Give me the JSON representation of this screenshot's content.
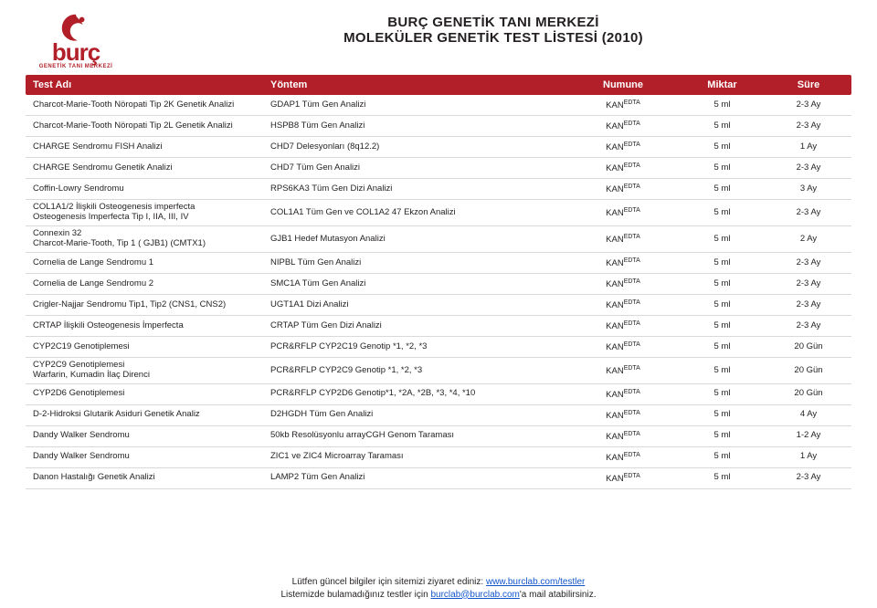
{
  "brand": {
    "word": "burç",
    "sub": "GENETİK TANI MERKEZİ",
    "swirl_color": "#b21f28"
  },
  "title": {
    "line1": "BURÇ GENETİK TANI MERKEZİ",
    "line2": "MOLEKÜLER GENETİK TEST LİSTESİ (2010)"
  },
  "columns": {
    "name": "Test Adı",
    "method": "Yöntem",
    "sample": "Numune",
    "amount": "Miktar",
    "time": "Süre"
  },
  "sample_label": {
    "prefix": "KAN",
    "sup": "EDTA"
  },
  "rows": [
    {
      "name": "Charcot-Marie-Tooth Nöropati Tip 2K Genetik Analizi",
      "method": "GDAP1 Tüm Gen Analizi",
      "amount": "5 ml",
      "time": "2-3 Ay"
    },
    {
      "name": "Charcot-Marie-Tooth Nöropati Tip 2L Genetik Analizi",
      "method": "HSPB8 Tüm Gen Analizi",
      "amount": "5 ml",
      "time": "2-3 Ay"
    },
    {
      "name": "CHARGE Sendromu FISH Analizi",
      "method": "CHD7 Delesyonları (8q12.2)",
      "amount": "5 ml",
      "time": "1 Ay"
    },
    {
      "name": "CHARGE Sendromu Genetik Analizi",
      "method": "CHD7 Tüm Gen Analizi",
      "amount": "5 ml",
      "time": "2-3 Ay"
    },
    {
      "name": "Coffin-Lowry Sendromu",
      "method": "RPS6KA3 Tüm Gen Dizi Analizi",
      "amount": "5 ml",
      "time": "3 Ay"
    },
    {
      "name": "COL1A1/2 İlişkili Osteogenesis imperfecta\nOsteogenesis Imperfecta Tip I, IIA, III, IV",
      "method": "COL1A1 Tüm Gen ve COL1A2 47 Ekzon Analizi",
      "amount": "5 ml",
      "time": "2-3 Ay"
    },
    {
      "name": "Connexin 32\nCharcot-Marie-Tooth, Tip 1 ( GJB1) (CMTX1)",
      "method": "GJB1 Hedef Mutasyon Analizi",
      "amount": "5 ml",
      "time": "2 Ay"
    },
    {
      "name": "Cornelia de Lange Sendromu 1",
      "method": "NIPBL Tüm Gen Analizi",
      "amount": "5 ml",
      "time": "2-3 Ay"
    },
    {
      "name": "Cornelia de Lange Sendromu 2",
      "method": "SMC1A Tüm Gen Analizi",
      "amount": "5 ml",
      "time": "2-3 Ay"
    },
    {
      "name": "Crigler-Najjar Sendromu Tip1, Tip2 (CNS1, CNS2)",
      "method": "UGT1A1 Dizi Analizi",
      "amount": "5 ml",
      "time": "2-3 Ay"
    },
    {
      "name": "CRTAP İlişkili Osteogenesis İmperfecta",
      "method": "CRTAP Tüm Gen Dizi Analizi",
      "amount": "5 ml",
      "time": "2-3 Ay"
    },
    {
      "name": "CYP2C19 Genotiplemesi",
      "method": "PCR&RFLP CYP2C19 Genotip *1, *2, *3",
      "amount": "5 ml",
      "time": "20 Gün"
    },
    {
      "name": "CYP2C9 Genotiplemesi\nWarfarin, Kumadin İlaç Direnci",
      "method": "PCR&RFLP CYP2C9 Genotip *1, *2, *3",
      "amount": "5 ml",
      "time": "20 Gün"
    },
    {
      "name": "CYP2D6 Genotiplemesi",
      "method": "PCR&RFLP CYP2D6 Genotip*1, *2A, *2B, *3, *4, *10",
      "amount": "5 ml",
      "time": "20 Gün"
    },
    {
      "name": "D-2-Hidroksi Glutarik Asiduri Genetik Analiz",
      "method": "D2HGDH Tüm Gen Analizi",
      "amount": "5 ml",
      "time": "4 Ay"
    },
    {
      "name": "Dandy Walker Sendromu",
      "method": "50kb Resolüsyonlu arrayCGH Genom Taraması",
      "amount": "5 ml",
      "time": "1-2 Ay"
    },
    {
      "name": "Dandy Walker Sendromu",
      "method": "ZIC1 ve ZIC4 Microarray Taraması",
      "amount": "5 ml",
      "time": "1 Ay"
    },
    {
      "name": "Danon Hastalığı Genetik Analizi",
      "method": "LAMP2 Tüm Gen Analizi",
      "amount": "5 ml",
      "time": "2-3 Ay"
    }
  ],
  "footer": {
    "l1a": "Lütfen güncel bilgiler için sitemizi ziyaret ediniz: ",
    "l1b": "www.burclab.com/testler",
    "l2a": "Listemizde bulamadığınız testler için ",
    "l2b": "burclab@burclab.com",
    "l2c": "'a mail atabilirsiniz."
  }
}
